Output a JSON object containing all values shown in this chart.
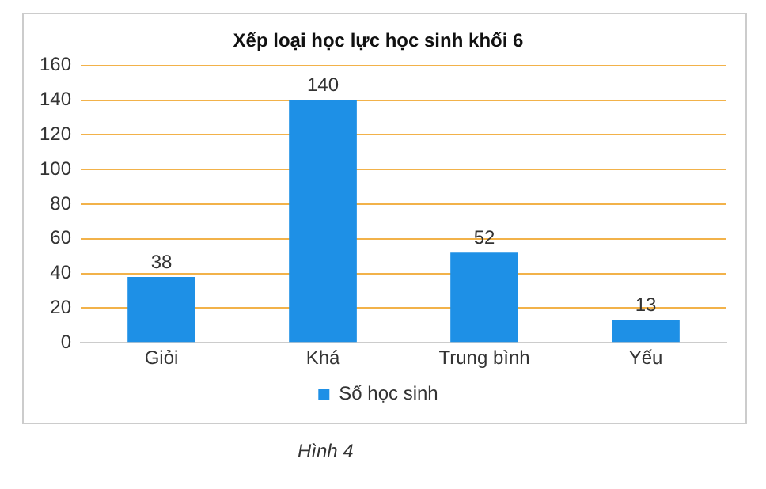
{
  "chart_data": {
    "type": "bar",
    "title": "Xếp loại học lực học sinh khối 6",
    "categories": [
      "Giỏi",
      "Khá",
      "Trung bình",
      "Yếu"
    ],
    "series": [
      {
        "name": "Số học sinh",
        "color": "#1e90e6",
        "values": [
          38,
          140,
          52,
          13
        ]
      }
    ],
    "ylim": [
      0,
      160
    ],
    "yticks": [
      0,
      20,
      40,
      60,
      80,
      100,
      120,
      140,
      160
    ],
    "grid": "y",
    "legend": "bottom",
    "data_labels": true,
    "annotations": [
      "Hình 4"
    ]
  }
}
